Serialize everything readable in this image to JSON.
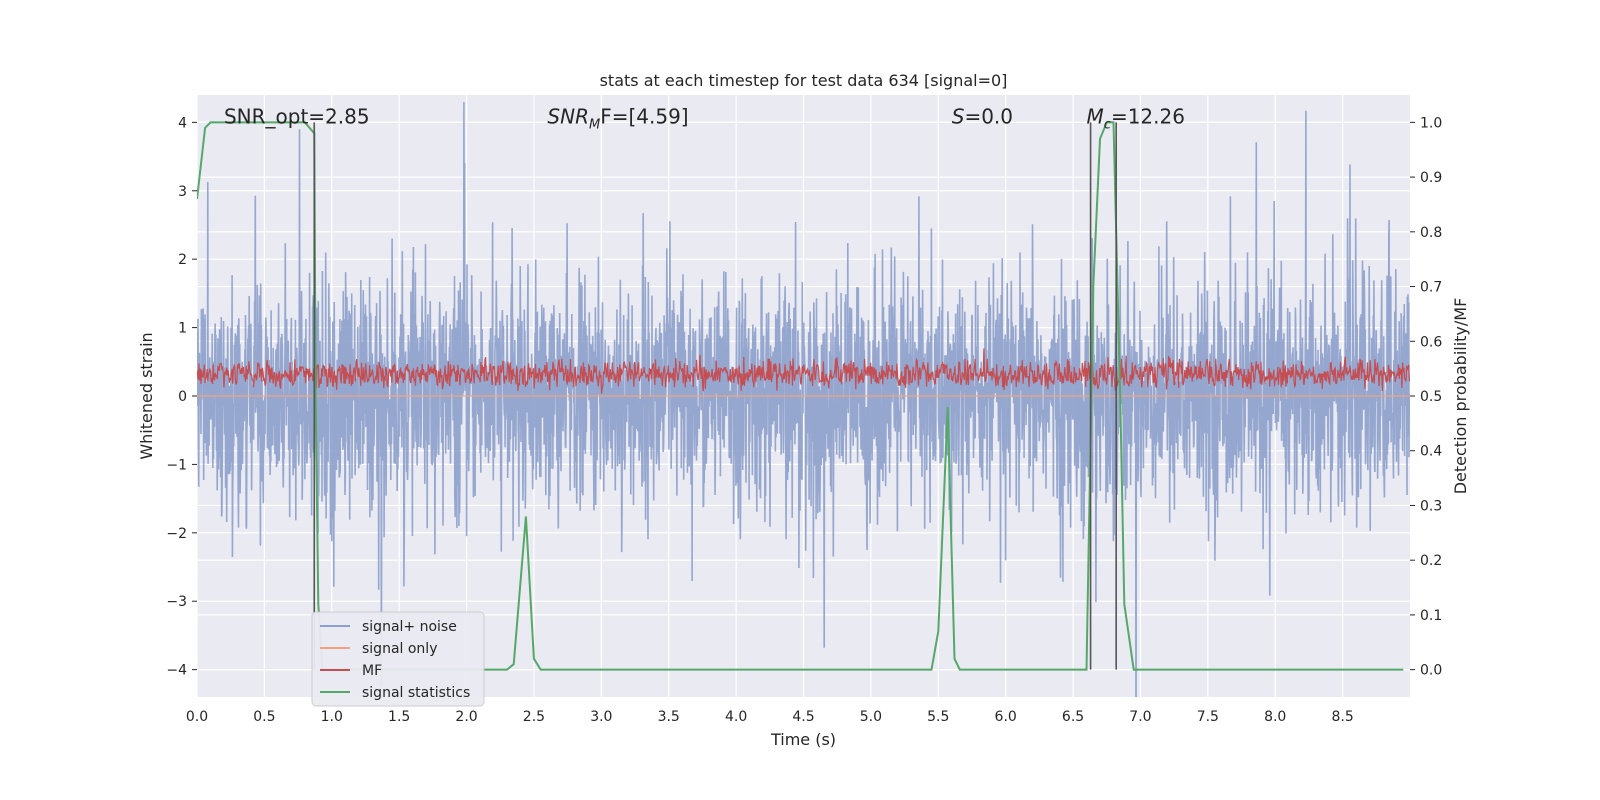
{
  "chart_data": {
    "type": "line",
    "title": "stats at each timestep for test data 634 [signal=0]",
    "xlabel": "Time (s)",
    "ylabel_left": "Whitened strain",
    "ylabel_right": "Detection probability/MF",
    "xlim": [
      0.0,
      9.0
    ],
    "ylim_left": [
      -4.4,
      4.4
    ],
    "ylim_right": [
      -0.05,
      1.05
    ],
    "x_ticks": [
      "0.0",
      "0.5",
      "1.0",
      "1.5",
      "2.0",
      "2.5",
      "3.0",
      "3.5",
      "4.0",
      "4.5",
      "5.0",
      "5.5",
      "6.0",
      "6.5",
      "7.0",
      "7.5",
      "8.0",
      "8.5"
    ],
    "y_ticks_left": [
      "4",
      "3",
      "2",
      "1",
      "0",
      "−1",
      "−2",
      "−3",
      "−4"
    ],
    "y_ticks_right": [
      "1.0",
      "0.9",
      "0.8",
      "0.7",
      "0.6",
      "0.5",
      "0.4",
      "0.3",
      "0.2",
      "0.1",
      "0.0"
    ],
    "grid": true,
    "legend_position": "lower-left",
    "annotations": [
      {
        "name": "snr-opt-annotation",
        "text": "SNR_opt=2.85",
        "x": 0.2
      },
      {
        "name": "snr-mf-annotation",
        "text": "SNR",
        "sub": "M",
        "tail": "F=[4.59]",
        "x": 2.6
      },
      {
        "name": "s-annotation",
        "text": "S=0.0",
        "x": 5.6
      },
      {
        "name": "mc-annotation",
        "text": "M",
        "sub": "c",
        "tail": "=12.26",
        "x": 6.6
      }
    ],
    "series": [
      {
        "name": "signal+ noise",
        "axis": "left",
        "color": "#8da0cb",
        "style": "noise",
        "envelope_sigma": 0.8
      },
      {
        "name": "signal only",
        "axis": "left",
        "color": "#f0a37e",
        "style": "flat",
        "x": [
          0.0,
          9.0
        ],
        "y": [
          0.0,
          0.0
        ]
      },
      {
        "name": "MF",
        "axis": "left",
        "color": "#c44e52",
        "style": "noise-positive",
        "mean": 0.32,
        "spread": 0.15
      },
      {
        "name": "signal statistics",
        "axis": "right",
        "color": "#55a868",
        "style": "line",
        "x": [
          0.0,
          0.06,
          0.1,
          0.8,
          0.87,
          0.88,
          0.9,
          0.93,
          0.97,
          2.3,
          2.35,
          2.44,
          2.5,
          2.55,
          5.45,
          5.5,
          5.57,
          5.62,
          5.66,
          6.6,
          6.65,
          6.7,
          6.75,
          6.8,
          6.85,
          6.88,
          6.95,
          8.95
        ],
        "y": [
          0.86,
          0.99,
          1.0,
          1.0,
          0.98,
          0.5,
          0.12,
          0.0,
          0.0,
          0.0,
          0.01,
          0.28,
          0.02,
          0.0,
          0.0,
          0.07,
          0.48,
          0.02,
          0.0,
          0.0,
          0.7,
          0.97,
          1.0,
          1.0,
          0.5,
          0.12,
          0.0,
          0.0
        ]
      }
    ],
    "vertical_markers": [
      {
        "name": "marker-line",
        "x": 0.87,
        "ymax": 1.0,
        "color": "#555555"
      },
      {
        "name": "marker-line",
        "x": 6.63,
        "ymax": 1.0,
        "color": "#555555"
      },
      {
        "name": "marker-line",
        "x": 6.82,
        "ymax": 1.0,
        "color": "#555555"
      }
    ],
    "background_color": "#eaeaf2"
  }
}
